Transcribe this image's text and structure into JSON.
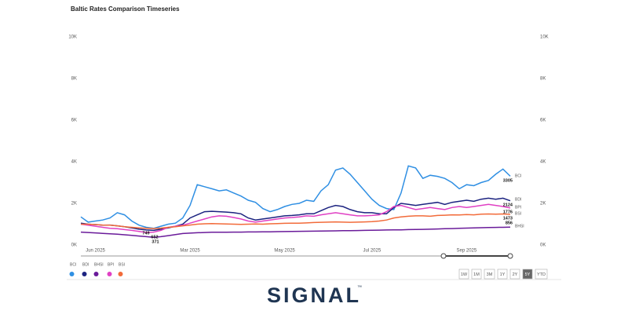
{
  "chart_data": {
    "type": "line",
    "title": "Baltic Rates Comparison Timeseries",
    "categories": [
      null,
      null,
      "Jun 2025",
      null,
      null,
      null,
      null,
      null,
      null,
      null,
      null,
      null,
      null,
      null,
      null,
      "Mar 2025",
      null,
      null,
      null,
      null,
      null,
      null,
      null,
      null,
      null,
      null,
      null,
      null,
      "May 2025",
      null,
      null,
      null,
      null,
      null,
      null,
      null,
      null,
      null,
      null,
      null,
      "Jul 2025",
      null,
      null,
      null,
      null,
      null,
      null,
      null,
      null,
      null,
      null,
      null,
      null,
      "Sep 2025",
      null,
      null,
      null,
      null,
      null,
      null
    ],
    "ylim": [
      0,
      10000
    ],
    "yticks": [
      {
        "value": 0,
        "label": "0K"
      },
      {
        "value": 2000,
        "label": "2K"
      },
      {
        "value": 4000,
        "label": "4K"
      },
      {
        "value": 6000,
        "label": "6K"
      },
      {
        "value": 8000,
        "label": "8K"
      },
      {
        "value": 10000,
        "label": "10K"
      }
    ],
    "y2lim": [
      0,
      10000
    ],
    "y2ticks": [
      {
        "value": 0,
        "label": "0K"
      },
      {
        "value": 2000,
        "label": "2K"
      },
      {
        "value": 4000,
        "label": "4K"
      },
      {
        "value": 6000,
        "label": "6K"
      },
      {
        "value": 8000,
        "label": "8K"
      },
      {
        "value": 10000,
        "label": "10K"
      }
    ],
    "grid": false,
    "legend": "bottom-left",
    "series": [
      {
        "name": "BCI",
        "color": "#2f8fe3",
        "values": [
          1350,
          1100,
          1150,
          1200,
          1300,
          1550,
          1450,
          1150,
          950,
          850,
          800,
          900,
          1000,
          1050,
          1300,
          1900,
          2900,
          2800,
          2700,
          2600,
          2650,
          2500,
          2350,
          2150,
          2050,
          1750,
          1600,
          1700,
          1850,
          1950,
          2000,
          2150,
          2100,
          2600,
          2900,
          3600,
          3700,
          3400,
          3000,
          2600,
          2200,
          1900,
          1750,
          1700,
          2500,
          3800,
          3700,
          3200,
          3350,
          3300,
          3200,
          3000,
          2700,
          2900,
          2850,
          3000,
          3100,
          3400,
          3650,
          3305
        ]
      },
      {
        "name": "BDI",
        "color": "#1c2380",
        "values": [
          1050,
          1000,
          980,
          950,
          960,
          920,
          880,
          820,
          760,
          720,
          700,
          760,
          820,
          900,
          1000,
          1300,
          1450,
          1600,
          1620,
          1600,
          1580,
          1550,
          1500,
          1300,
          1200,
          1250,
          1300,
          1350,
          1400,
          1420,
          1450,
          1500,
          1500,
          1650,
          1800,
          1900,
          1850,
          1700,
          1600,
          1550,
          1550,
          1500,
          1500,
          1800,
          2000,
          1950,
          1900,
          1950,
          2000,
          2050,
          1950,
          2050,
          2100,
          2150,
          2100,
          2200,
          2250,
          2200,
          2250,
          2124
        ]
      },
      {
        "name": "BHSI",
        "color": "#6a1b9a",
        "values": [
          620,
          600,
          580,
          560,
          540,
          520,
          490,
          460,
          430,
          400,
          371,
          400,
          450,
          500,
          550,
          570,
          590,
          600,
          610,
          610,
          615,
          620,
          620,
          625,
          625,
          630,
          630,
          640,
          645,
          650,
          655,
          660,
          665,
          670,
          675,
          680,
          685,
          690,
          695,
          700,
          710,
          715,
          720,
          725,
          730,
          740,
          745,
          750,
          760,
          770,
          780,
          790,
          800,
          810,
          820,
          830,
          840,
          845,
          850,
          856
        ]
      },
      {
        "name": "BPI",
        "color": "#e040c4",
        "values": [
          1000,
          950,
          900,
          850,
          800,
          780,
          740,
          700,
          650,
          600,
          620,
          700,
          850,
          900,
          950,
          1050,
          1150,
          1250,
          1350,
          1400,
          1380,
          1320,
          1250,
          1150,
          1100,
          1150,
          1200,
          1250,
          1300,
          1320,
          1350,
          1400,
          1380,
          1450,
          1500,
          1550,
          1500,
          1450,
          1400,
          1400,
          1420,
          1450,
          1600,
          1850,
          1900,
          1800,
          1700,
          1750,
          1800,
          1750,
          1700,
          1800,
          1850,
          1800,
          1850,
          1900,
          1950,
          1900,
          1850,
          1776
        ]
      },
      {
        "name": "BSI",
        "color": "#f26b3a",
        "values": [
          1000,
          1000,
          980,
          960,
          950,
          920,
          880,
          850,
          820,
          800,
          790,
          810,
          850,
          880,
          920,
          960,
          1000,
          1020,
          1030,
          1020,
          1010,
          1000,
          990,
          1000,
          1010,
          1000,
          1020,
          1030,
          1040,
          1050,
          1050,
          1060,
          1080,
          1090,
          1100,
          1110,
          1100,
          1090,
          1100,
          1110,
          1120,
          1150,
          1200,
          1300,
          1350,
          1380,
          1400,
          1400,
          1380,
          1420,
          1430,
          1450,
          1440,
          1460,
          1450,
          1480,
          1490,
          1480,
          1490,
          1473
        ]
      }
    ],
    "annotations": [
      "749",
      "652",
      "371"
    ],
    "range_buttons": [
      "1W",
      "1M",
      "3M",
      "1Y",
      "2Y",
      "5Y",
      "YTD"
    ],
    "active_range": "5Y",
    "logo": "SIGNAL",
    "logo_mark": "™"
  }
}
